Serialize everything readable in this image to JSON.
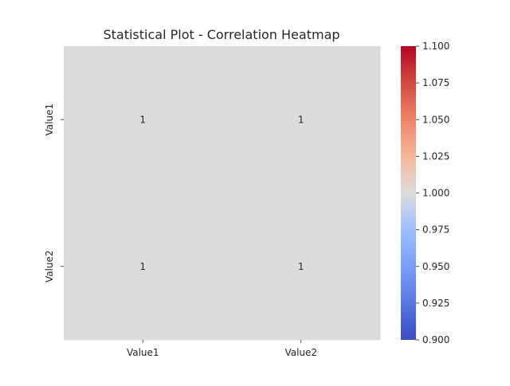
{
  "chart_data": {
    "type": "heatmap",
    "title": "Statistical Plot - Correlation Heatmap",
    "xlabel": "",
    "ylabel": "",
    "x_categories": [
      "Value1",
      "Value2"
    ],
    "y_categories": [
      "Value1",
      "Value2"
    ],
    "values": [
      [
        1,
        1
      ],
      [
        1,
        1
      ]
    ],
    "annotations": [
      [
        "1",
        "1"
      ],
      [
        "1",
        "1"
      ]
    ],
    "colormap": "coolwarm",
    "cell_color": "#dddcdc",
    "colorbar": {
      "range": [
        0.9,
        1.1
      ],
      "ticks": [
        "0.900",
        "0.925",
        "0.950",
        "0.975",
        "1.000",
        "1.025",
        "1.050",
        "1.075",
        "1.100"
      ]
    }
  }
}
